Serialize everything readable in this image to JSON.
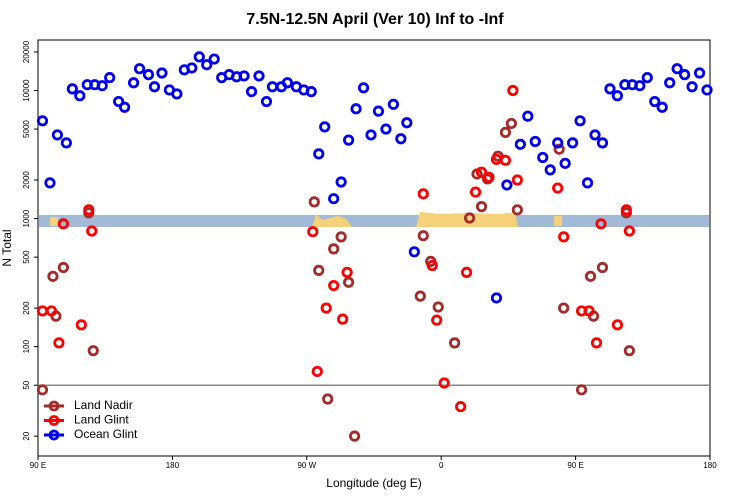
{
  "chart_data": {
    "type": "scatter",
    "title": "7.5N-12.5N April (Ver 10)   Inf to -Inf",
    "xlabel": "Longitude (deg E)",
    "ylabel": "N Total",
    "xlim": [
      90,
      540
    ],
    "xticks": [
      {
        "value": 90,
        "label": "90 E"
      },
      {
        "value": 180,
        "label": "180"
      },
      {
        "value": 270,
        "label": "90 W"
      },
      {
        "value": 360,
        "label": "0"
      },
      {
        "value": 450,
        "label": "90 E"
      },
      {
        "value": 540,
        "label": "180"
      }
    ],
    "ylim": [
      14,
      24800
    ],
    "log_y": true,
    "yticks": [
      20,
      50,
      100,
      200,
      500,
      1000,
      2000,
      5000,
      10000,
      20000
    ],
    "reference_line": 50,
    "legend": "lower left",
    "series": [
      {
        "name": "Land Nadir",
        "color": "#a52a2a",
        "x": [
          93,
          100,
          102,
          107,
          124,
          127,
          275,
          278,
          284,
          288,
          293,
          298,
          302,
          346,
          348,
          353,
          358,
          369,
          379,
          384,
          387,
          391,
          398,
          403,
          407,
          411,
          439,
          442,
          454,
          460,
          462,
          468,
          484,
          486
        ],
        "values": [
          46,
          354,
          173,
          415,
          1110,
          93,
          1350,
          394,
          39,
          580,
          720,
          318,
          20,
          248,
          735,
          463,
          204,
          107,
          1010,
          2230,
          1240,
          2040,
          3070,
          4710,
          5530,
          1170,
          3480,
          200,
          46,
          354,
          173,
          415,
          1110,
          93
        ]
      },
      {
        "name": "Land Glint",
        "color": "#ff0000",
        "x": [
          93,
          99,
          104,
          107,
          119,
          124,
          126,
          274,
          277,
          283,
          288,
          294,
          297,
          348,
          354,
          357,
          362,
          373,
          377,
          383,
          387,
          392,
          397,
          403,
          408,
          411,
          438,
          442,
          454,
          459,
          464,
          467,
          478,
          484,
          486
        ],
        "values": [
          190,
          190,
          107,
          910,
          148,
          1170,
          800,
          790,
          64,
          200,
          300,
          164,
          380,
          1560,
          430,
          161,
          52,
          34,
          380,
          1610,
          2300,
          2100,
          2900,
          2850,
          10000,
          2000,
          1730,
          720,
          190,
          190,
          107,
          910,
          148,
          1170,
          800
        ]
      },
      {
        "name": "Ocean Glint",
        "color": "#0000ee",
        "x": [
          93,
          98,
          103,
          109,
          113,
          118,
          123,
          128,
          133,
          138,
          144,
          148,
          154,
          158,
          164,
          168,
          173,
          178,
          183,
          188,
          193,
          198,
          203,
          208,
          213,
          218,
          223,
          228,
          233,
          238,
          243,
          247,
          253,
          257,
          263,
          268,
          273,
          278,
          282,
          288,
          293,
          298,
          303,
          308,
          313,
          318,
          323,
          328,
          333,
          337,
          342,
          397,
          404,
          413,
          418,
          423,
          428,
          433,
          438,
          443,
          448,
          453,
          458,
          463,
          468,
          473,
          478,
          483,
          488,
          493,
          498,
          503,
          508,
          513,
          518,
          523,
          528,
          533,
          538
        ],
        "values": [
          5800,
          1900,
          4500,
          3900,
          10300,
          9100,
          11100,
          11100,
          10900,
          12600,
          8200,
          7400,
          11500,
          14800,
          13300,
          10700,
          13700,
          10100,
          9400,
          14500,
          15000,
          18300,
          15900,
          17600,
          12600,
          13300,
          12800,
          13000,
          9800,
          13000,
          8200,
          10700,
          10700,
          11500,
          10700,
          10100,
          9800,
          3200,
          5200,
          1430,
          1930,
          4100,
          7200,
          10500,
          4500,
          6900,
          5000,
          7800,
          4200,
          5600,
          550,
          240,
          1830,
          3800,
          6300,
          4000,
          3000,
          2400,
          3900,
          2700,
          3900,
          5800,
          1900,
          4500,
          3900,
          10300,
          9100,
          11100,
          11100,
          10900,
          12600,
          8200,
          7400,
          11500,
          14800,
          13300,
          10700,
          13700,
          10100
        ]
      }
    ]
  }
}
